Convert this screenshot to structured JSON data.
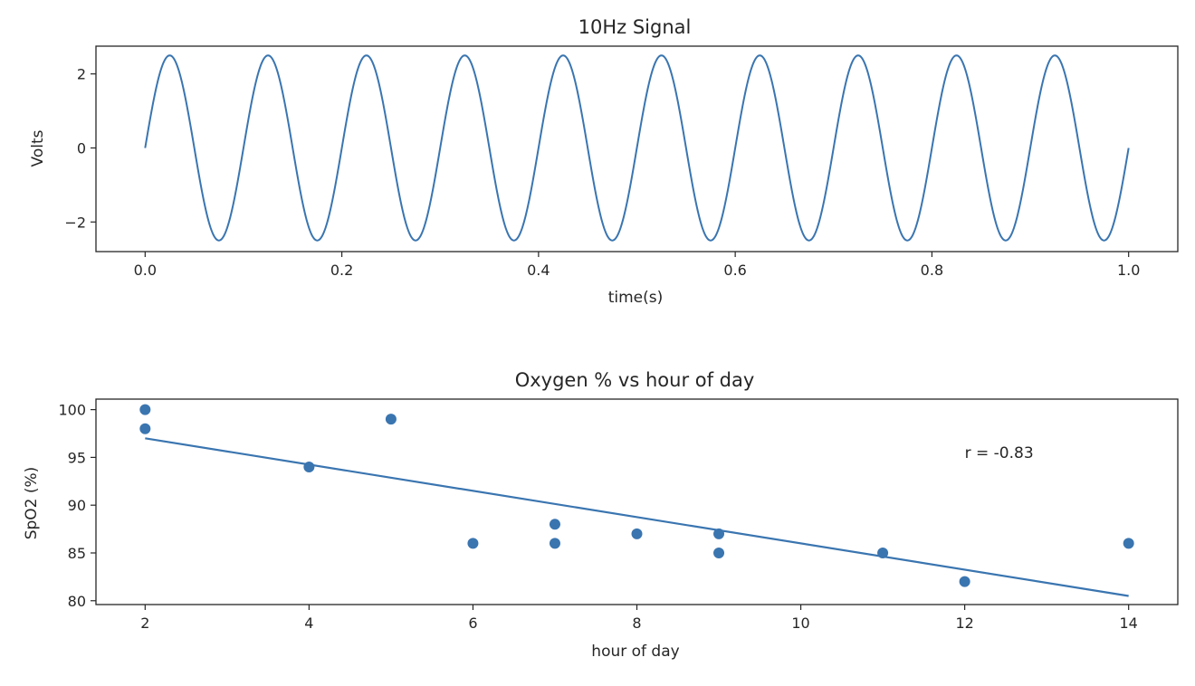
{
  "chart_data": [
    {
      "type": "line",
      "title": "10Hz Signal",
      "xlabel": "time(s)",
      "ylabel": "Volts",
      "xlim": [
        -0.05,
        1.05
      ],
      "ylim": [
        -2.8,
        2.75
      ],
      "xticks": [
        0.0,
        0.2,
        0.4,
        0.6,
        0.8,
        1.0
      ],
      "xtick_labels": [
        "0.0",
        "0.2",
        "0.4",
        "0.6",
        "0.8",
        "1.0"
      ],
      "yticks": [
        -2,
        0,
        2
      ],
      "ytick_labels": [
        "−2",
        "0",
        "2"
      ],
      "series": [
        {
          "function": "sine",
          "amplitude": 2.5,
          "frequency_hz": 10,
          "x_start": 0.0,
          "x_end": 1.0,
          "color": "#3a75b0"
        }
      ],
      "grid": false
    },
    {
      "type": "scatter",
      "title": "Oxygen % vs hour of day",
      "xlabel": "hour of day",
      "ylabel": "SpO2 (%)",
      "xlim": [
        1.4,
        14.6
      ],
      "ylim": [
        79.6,
        101.1
      ],
      "xticks": [
        2,
        4,
        6,
        8,
        10,
        12,
        14
      ],
      "xtick_labels": [
        "2",
        "4",
        "6",
        "8",
        "10",
        "12",
        "14"
      ],
      "yticks": [
        80,
        85,
        90,
        95,
        100
      ],
      "ytick_labels": [
        "80",
        "85",
        "90",
        "95",
        "100"
      ],
      "points": [
        {
          "x": 2,
          "y": 100
        },
        {
          "x": 2,
          "y": 98
        },
        {
          "x": 4,
          "y": 94
        },
        {
          "x": 5,
          "y": 99
        },
        {
          "x": 6,
          "y": 86
        },
        {
          "x": 7,
          "y": 88
        },
        {
          "x": 7,
          "y": 86
        },
        {
          "x": 8,
          "y": 87
        },
        {
          "x": 9,
          "y": 87
        },
        {
          "x": 9,
          "y": 85
        },
        {
          "x": 11,
          "y": 85
        },
        {
          "x": 12,
          "y": 82
        },
        {
          "x": 14,
          "y": 86
        }
      ],
      "fit_line": {
        "x": [
          2,
          14
        ],
        "y": [
          97.0,
          80.5
        ]
      },
      "annotation": {
        "text": "r = -0.83",
        "x": 12,
        "y": 95.5
      },
      "color": "#3a75b0",
      "grid": false
    }
  ]
}
